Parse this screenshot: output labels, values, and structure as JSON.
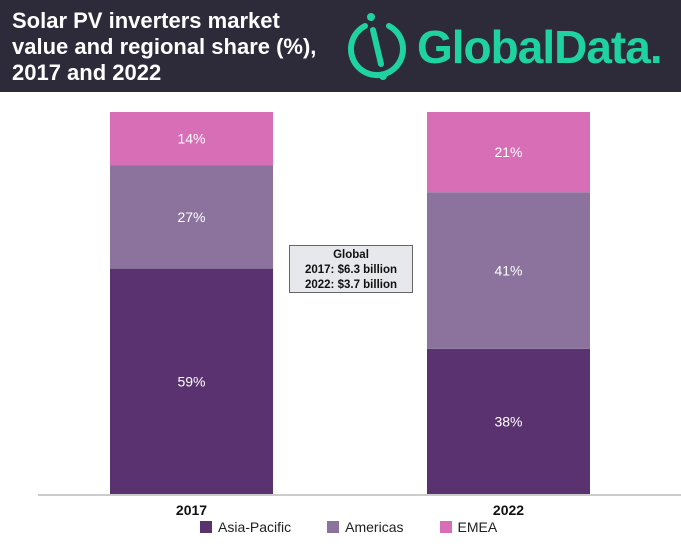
{
  "header": {
    "title_lines": [
      "Solar PV inverters market",
      "value and regional share (%),",
      "2017 and 2022"
    ],
    "logo_text": "GlobalData.",
    "logo_color": "#1fd3a0",
    "background": "#2d2a3a"
  },
  "annotation": {
    "lines": [
      "Global",
      "2017: $6.3 billion",
      "2022: $3.7 billion"
    ]
  },
  "chart_data": {
    "type": "bar",
    "stacked": true,
    "categories": [
      "2017",
      "2022"
    ],
    "ylim": [
      0,
      100
    ],
    "series": [
      {
        "name": "Asia-Pacific",
        "values": [
          59,
          38
        ],
        "color": "#5a3270"
      },
      {
        "name": "Americas",
        "values": [
          27,
          41
        ],
        "color": "#8b739e"
      },
      {
        "name": "EMEA",
        "values": [
          14,
          21
        ],
        "color": "#d86fb6"
      }
    ],
    "legend": "bottom",
    "grid": false
  }
}
